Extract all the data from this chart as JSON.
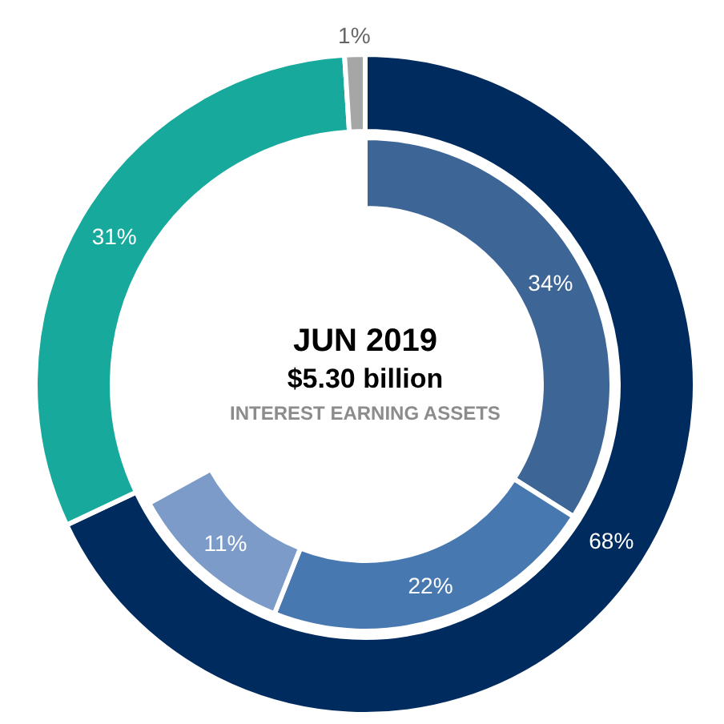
{
  "chart_data": {
    "type": "donut",
    "title": "JUN 2019",
    "subtitle": "$5.30 billion",
    "annotations": [
      "INTEREST EARNING ASSETS"
    ],
    "series": [
      {
        "values": [
          68,
          31,
          1
        ],
        "colors": [
          "#002b5e",
          "#17a99b",
          "#a6a6a6"
        ],
        "value_labels": [
          "68%",
          "31%",
          "1%"
        ]
      },
      {
        "values": [
          34,
          22,
          11
        ],
        "colors": [
          "#3d6596",
          "#4878b0",
          "#7d9bc8"
        ],
        "value_labels": [
          "34%",
          "22%",
          "11%"
        ]
      }
    ]
  }
}
